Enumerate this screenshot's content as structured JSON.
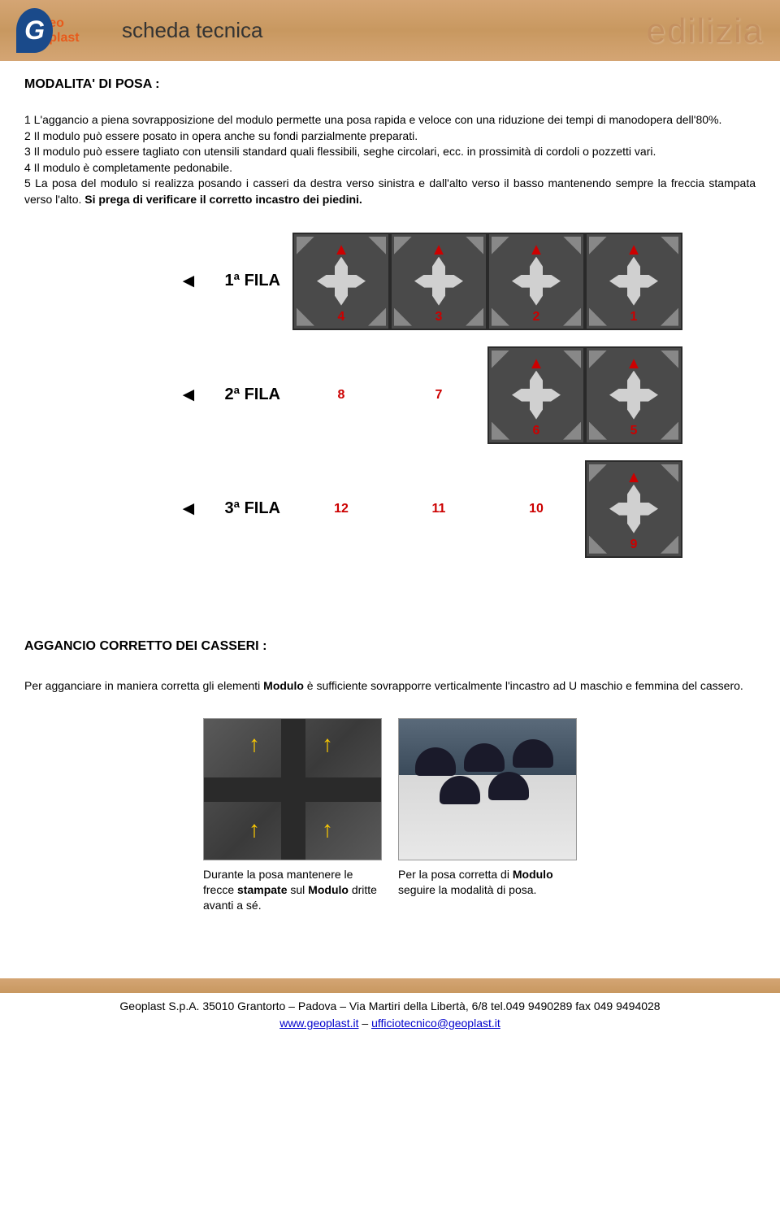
{
  "header": {
    "logo_letter": "G",
    "logo_sub": "eo plast",
    "title": "scheda tecnica",
    "right_word": "edilizia"
  },
  "section1": {
    "title": "MODALITA' DI POSA :",
    "text": "1 L'aggancio a piena sovrapposizione del modulo permette una posa rapida e veloce con una riduzione dei tempi di manodopera dell'80%.\n2 Il modulo può essere posato in opera anche su fondi parzialmente preparati.\n3 Il modulo può essere tagliato con utensili standard quali flessibili, seghe circolari, ecc. in prossimità di cordoli o pozzetti vari.\n4 Il modulo è completamente pedonabile.\n5 La posa del modulo si realizza posando i casseri da destra verso sinistra e dall'alto verso il basso mantenendo sempre la freccia stampata verso l'alto. Si prega di verificare il corretto incastro dei piedini.",
    "text_bold_suffix": "Si prega di verificare il corretto incastro dei piedini."
  },
  "diagram": {
    "rows": [
      {
        "label": "1ª FILA",
        "modules": [
          4,
          3,
          2,
          1
        ],
        "solid": [
          true,
          true,
          true,
          true
        ]
      },
      {
        "label": "2ª FILA",
        "modules": [
          8,
          7,
          6,
          5
        ],
        "solid": [
          false,
          false,
          true,
          true
        ]
      },
      {
        "label": "3ª FILA",
        "modules": [
          12,
          11,
          10,
          9
        ],
        "solid": [
          false,
          false,
          false,
          true
        ]
      }
    ],
    "arrow_color": "#cc0000",
    "number_color": "#cc0000",
    "module_bg": "#4a4a4a",
    "module_border": "#2a2a2a"
  },
  "section2": {
    "title": "AGGANCIO CORRETTO DEI CASSERI :",
    "intro_pre": "Per agganciare in maniera corretta gli elementi ",
    "intro_bold": "Modulo",
    "intro_post": " è sufficiente sovrapporre verticalmente l'incastro ad U maschio e femmina del cassero.",
    "captions": [
      {
        "pre": "Durante la posa mantenere le frecce ",
        "bold1": "stampate",
        "mid": " sul ",
        "bold2": "Modulo",
        "post": " dritte avanti a sé."
      },
      {
        "pre": "Per la posa corretta di ",
        "bold1": "Modulo",
        "post": " seguire la modalità di posa."
      }
    ]
  },
  "footer": {
    "line1": "Geoplast S.p.A. 35010 Grantorto – Padova – Via Martiri della Libertà, 6/8 tel.049 9490289 fax 049 9494028",
    "link1": "www.geoplast.it",
    "sep": " – ",
    "link2": "ufficiotecnico@geoplast.it"
  },
  "colors": {
    "banner_bg": "#d4a574",
    "link": "#0000cc",
    "yellow_arrow": "#ffcc00"
  }
}
